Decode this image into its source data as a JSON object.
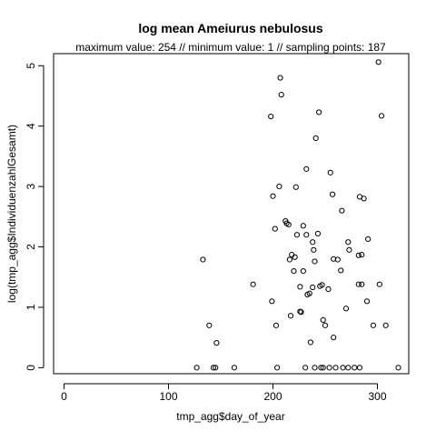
{
  "chart_data": {
    "type": "scatter",
    "title": "log mean Ameiurus nebulosus",
    "subtitle": "maximum value: 254  //  minimum value: 1  // sampling points: 187",
    "xlabel": "tmp_agg$day_of_year",
    "ylabel": "log(tmp_agg$IndividuenzahlGesamt)",
    "xlim": [
      -10,
      330
    ],
    "ylim": [
      -0.1,
      5.2
    ],
    "xticks": [
      "0",
      "100",
      "200",
      "300"
    ],
    "yticks": [
      "0",
      "1",
      "2",
      "3",
      "4",
      "5"
    ],
    "grid": false,
    "legend": "none",
    "marker": "open-circle",
    "colors": {
      "points": "#000000",
      "axes": "#000000",
      "background": "#ffffff"
    },
    "points": [
      [
        127,
        0
      ],
      [
        143,
        0
      ],
      [
        145,
        0
      ],
      [
        163,
        0
      ],
      [
        204,
        0
      ],
      [
        231,
        0
      ],
      [
        240,
        0
      ],
      [
        246,
        0
      ],
      [
        248,
        0
      ],
      [
        254,
        0
      ],
      [
        260,
        0
      ],
      [
        267,
        0
      ],
      [
        272,
        0
      ],
      [
        278,
        0
      ],
      [
        283,
        0
      ],
      [
        320,
        0
      ],
      [
        146,
        0.41
      ],
      [
        236,
        0.42
      ],
      [
        139,
        0.7
      ],
      [
        203,
        0.7
      ],
      [
        250,
        0.7
      ],
      [
        296,
        0.7
      ],
      [
        308,
        0.7
      ],
      [
        248,
        0.79
      ],
      [
        258,
        0.5
      ],
      [
        133,
        1.79
      ],
      [
        181,
        1.38
      ],
      [
        199,
        1.1
      ],
      [
        217,
        0.86
      ],
      [
        226,
        0.93
      ],
      [
        227,
        0.92
      ],
      [
        233,
        1.21
      ],
      [
        235,
        1.23
      ],
      [
        238,
        1.33
      ],
      [
        245,
        1.35
      ],
      [
        247,
        1.37
      ],
      [
        253,
        1.3
      ],
      [
        270,
        0.98
      ],
      [
        282,
        1.38
      ],
      [
        285,
        1.38
      ],
      [
        290,
        1.1
      ],
      [
        302,
        1.38
      ],
      [
        226,
        1.34
      ],
      [
        229,
        1.6
      ],
      [
        220,
        1.6
      ],
      [
        212,
        2.43
      ],
      [
        213,
        2.39
      ],
      [
        215,
        2.37
      ],
      [
        216,
        1.79
      ],
      [
        218,
        1.87
      ],
      [
        221,
        1.83
      ],
      [
        223,
        2.2
      ],
      [
        229,
        2.35
      ],
      [
        232,
        2.2
      ],
      [
        239,
        1.95
      ],
      [
        240,
        1.76
      ],
      [
        243,
        2.22
      ],
      [
        258,
        1.8
      ],
      [
        262,
        1.79
      ],
      [
        265,
        1.61
      ],
      [
        266,
        2.6
      ],
      [
        272,
        2.08
      ],
      [
        273,
        1.95
      ],
      [
        282,
        1.86
      ],
      [
        285,
        1.87
      ],
      [
        291,
        2.13
      ],
      [
        202,
        2.3
      ],
      [
        238,
        2.08
      ],
      [
        200,
        2.84
      ],
      [
        206,
        3.0
      ],
      [
        222,
        2.99
      ],
      [
        232,
        3.29
      ],
      [
        255,
        3.23
      ],
      [
        257,
        2.87
      ],
      [
        283,
        2.83
      ],
      [
        287,
        2.8
      ],
      [
        198,
        4.16
      ],
      [
        207,
        4.8
      ],
      [
        208,
        4.52
      ],
      [
        241,
        3.8
      ],
      [
        244,
        4.23
      ],
      [
        301,
        5.06
      ],
      [
        304,
        4.17
      ]
    ]
  }
}
